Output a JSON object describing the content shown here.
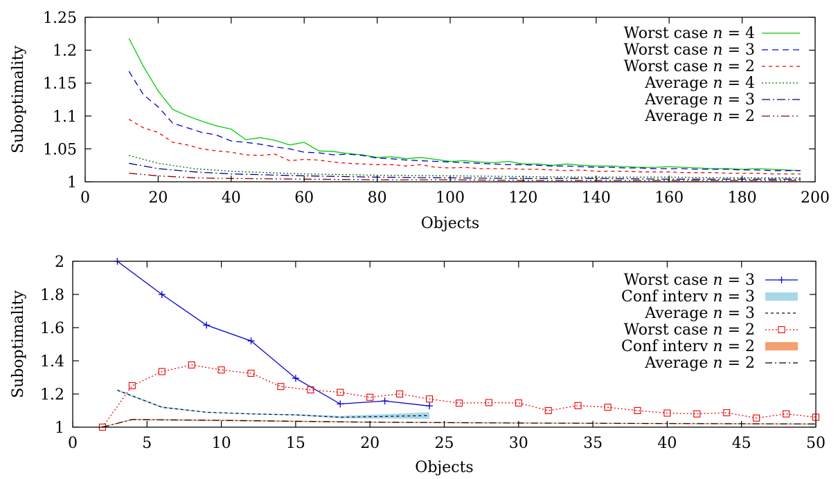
{
  "chart_data": [
    {
      "type": "line",
      "title": "",
      "xlabel": "Objects",
      "ylabel": "Suboptimality",
      "xlim": [
        0,
        200
      ],
      "ylim": [
        1,
        1.25
      ],
      "xticks": [
        0,
        20,
        40,
        60,
        80,
        100,
        120,
        140,
        160,
        180,
        200
      ],
      "yticks": [
        1,
        1.05,
        1.1,
        1.15,
        1.2,
        1.25
      ],
      "ytick_labels": [
        "1",
        "1.05",
        "1.1",
        "1.15",
        "1.2",
        "1.25"
      ],
      "legend_position": "top-right",
      "grid": false,
      "series": [
        {
          "name": "Worst case n = 4",
          "label_prefix": "Worst case ",
          "label_suffix": "4",
          "color": "#00cc00",
          "dash": "",
          "width": 1.3,
          "x": [
            12,
            16,
            20,
            24,
            28,
            32,
            36,
            40,
            44,
            48,
            52,
            56,
            60,
            64,
            68,
            72,
            76,
            80,
            84,
            88,
            92,
            96,
            100,
            104,
            108,
            112,
            116,
            120,
            124,
            128,
            132,
            136,
            140,
            144,
            148,
            152,
            156,
            160,
            164,
            168,
            172,
            176,
            180,
            184,
            188,
            192,
            196
          ],
          "y": [
            1.218,
            1.175,
            1.138,
            1.11,
            1.1,
            1.092,
            1.085,
            1.08,
            1.064,
            1.067,
            1.063,
            1.056,
            1.06,
            1.047,
            1.046,
            1.043,
            1.041,
            1.037,
            1.038,
            1.035,
            1.037,
            1.034,
            1.031,
            1.032,
            1.03,
            1.029,
            1.031,
            1.027,
            1.027,
            1.025,
            1.027,
            1.025,
            1.024,
            1.024,
            1.023,
            1.022,
            1.022,
            1.023,
            1.022,
            1.021,
            1.02,
            1.02,
            1.019,
            1.02,
            1.019,
            1.018,
            1.017
          ]
        },
        {
          "name": "Worst case n = 3",
          "label_prefix": "Worst case ",
          "label_suffix": "3",
          "color": "#0000cc",
          "dash": "9,6",
          "width": 1.3,
          "x": [
            12,
            16,
            20,
            24,
            28,
            32,
            36,
            40,
            44,
            48,
            52,
            56,
            60,
            64,
            68,
            72,
            76,
            80,
            84,
            88,
            92,
            96,
            100,
            104,
            108,
            112,
            116,
            120,
            124,
            128,
            132,
            136,
            140,
            144,
            148,
            152,
            156,
            160,
            164,
            168,
            172,
            176,
            180,
            184,
            188,
            192,
            196
          ],
          "y": [
            1.168,
            1.132,
            1.114,
            1.089,
            1.082,
            1.075,
            1.071,
            1.062,
            1.06,
            1.057,
            1.053,
            1.05,
            1.045,
            1.044,
            1.041,
            1.042,
            1.04,
            1.036,
            1.035,
            1.033,
            1.032,
            1.031,
            1.03,
            1.029,
            1.028,
            1.027,
            1.026,
            1.026,
            1.025,
            1.024,
            1.024,
            1.023,
            1.022,
            1.022,
            1.021,
            1.021,
            1.02,
            1.02,
            1.02,
            1.019,
            1.019,
            1.019,
            1.018,
            1.018,
            1.017,
            1.017,
            1.017
          ]
        },
        {
          "name": "Worst case n = 2",
          "label_prefix": "Worst case ",
          "label_suffix": "2",
          "color": "#ee0000",
          "dash": "5,5",
          "width": 1.3,
          "x": [
            12,
            16,
            20,
            24,
            28,
            32,
            36,
            40,
            44,
            48,
            52,
            56,
            60,
            64,
            68,
            72,
            76,
            80,
            84,
            88,
            92,
            96,
            100,
            104,
            108,
            112,
            116,
            120,
            124,
            128,
            132,
            136,
            140,
            144,
            148,
            152,
            156,
            160,
            164,
            168,
            172,
            176,
            180,
            184,
            188,
            192,
            196
          ],
          "y": [
            1.095,
            1.082,
            1.075,
            1.06,
            1.056,
            1.05,
            1.047,
            1.045,
            1.041,
            1.04,
            1.042,
            1.032,
            1.034,
            1.033,
            1.03,
            1.028,
            1.027,
            1.026,
            1.026,
            1.024,
            1.026,
            1.022,
            1.021,
            1.022,
            1.02,
            1.02,
            1.02,
            1.019,
            1.019,
            1.018,
            1.017,
            1.018,
            1.016,
            1.016,
            1.016,
            1.015,
            1.015,
            1.015,
            1.014,
            1.014,
            1.014,
            1.013,
            1.013,
            1.013,
            1.012,
            1.012,
            1.012
          ]
        },
        {
          "name": "Average n = 4",
          "label_prefix": "Average ",
          "label_suffix": "4",
          "color": "#006600",
          "dash": "2,3",
          "width": 1.3,
          "x": [
            12,
            20,
            30,
            40,
            60,
            80,
            100,
            120,
            140,
            160,
            180,
            196
          ],
          "y": [
            1.04,
            1.028,
            1.02,
            1.016,
            1.012,
            1.01,
            1.009,
            1.008,
            1.007,
            1.007,
            1.006,
            1.006
          ]
        },
        {
          "name": "Average n = 3",
          "label_prefix": "Average ",
          "label_suffix": "3",
          "color": "#000080",
          "dash": "12,4,2,4",
          "width": 1.3,
          "x": [
            12,
            20,
            30,
            40,
            60,
            80,
            100,
            120,
            140,
            160,
            180,
            196
          ],
          "y": [
            1.028,
            1.02,
            1.015,
            1.012,
            1.009,
            1.007,
            1.006,
            1.005,
            1.005,
            1.004,
            1.004,
            1.004
          ]
        },
        {
          "name": "Average n = 2",
          "label_prefix": "Average ",
          "label_suffix": "2",
          "color": "#8b0000",
          "dash": "12,4,2,4,2,4",
          "width": 1.3,
          "x": [
            12,
            20,
            30,
            40,
            60,
            80,
            100,
            120,
            140,
            160,
            180,
            196
          ],
          "y": [
            1.013,
            1.009,
            1.006,
            1.005,
            1.004,
            1.003,
            1.003,
            1.002,
            1.002,
            1.002,
            1.002,
            1.002
          ]
        }
      ]
    },
    {
      "type": "line",
      "title": "",
      "xlabel": "Objects",
      "ylabel": "Suboptimality",
      "xlim": [
        0,
        50
      ],
      "ylim": [
        1,
        2
      ],
      "xticks": [
        0,
        5,
        10,
        15,
        20,
        25,
        30,
        35,
        40,
        45,
        50
      ],
      "yticks": [
        1,
        1.2,
        1.4,
        1.6,
        1.8,
        2
      ],
      "ytick_labels": [
        "1",
        "1.2",
        "1.4",
        "1.6",
        "1.8",
        "2"
      ],
      "legend_position": "top-right",
      "grid": false,
      "series": [
        {
          "name": "Worst case n = 3",
          "label_prefix": "Worst case ",
          "label_suffix": "3",
          "kind": "line",
          "color": "#0000cc",
          "dash": "",
          "width": 1.3,
          "marker": "plus",
          "x": [
            3,
            6,
            9,
            12,
            15,
            18,
            21,
            24
          ],
          "y": [
            2.0,
            1.8,
            1.615,
            1.52,
            1.295,
            1.14,
            1.158,
            1.128
          ]
        },
        {
          "name": "Conf interv n = 3",
          "label_prefix": "Conf interv ",
          "label_suffix": "3",
          "kind": "band",
          "color": "#a8d8e8",
          "x": [
            3,
            6,
            9,
            12,
            15,
            18,
            21,
            24
          ],
          "lower": [
            1.218,
            1.115,
            1.087,
            1.077,
            1.07,
            1.053,
            1.052,
            1.05
          ],
          "upper": [
            1.228,
            1.125,
            1.093,
            1.083,
            1.078,
            1.068,
            1.078,
            1.09
          ]
        },
        {
          "name": "Average n = 3",
          "label_prefix": "Average ",
          "label_suffix": "3",
          "kind": "line",
          "color": "#000033",
          "dash": "4,4",
          "width": 1.2,
          "x": [
            3,
            6,
            9,
            12,
            15,
            18,
            21,
            24
          ],
          "y": [
            1.223,
            1.12,
            1.09,
            1.08,
            1.074,
            1.06,
            1.065,
            1.07
          ]
        },
        {
          "name": "Worst case n = 2",
          "label_prefix": "Worst case ",
          "label_suffix": "2",
          "kind": "line",
          "color": "#ee0000",
          "dash": "2,3",
          "width": 1.3,
          "marker": "square",
          "x": [
            2,
            4,
            6,
            8,
            10,
            12,
            14,
            16,
            18,
            20,
            22,
            24,
            26,
            28,
            30,
            32,
            34,
            36,
            38,
            40,
            42,
            44,
            46,
            48,
            50
          ],
          "y": [
            1.0,
            1.25,
            1.335,
            1.375,
            1.345,
            1.325,
            1.245,
            1.225,
            1.21,
            1.18,
            1.2,
            1.17,
            1.145,
            1.148,
            1.146,
            1.1,
            1.13,
            1.12,
            1.1,
            1.085,
            1.08,
            1.087,
            1.055,
            1.08,
            1.06
          ]
        },
        {
          "name": "Conf interv n = 2",
          "label_prefix": "Conf interv ",
          "label_suffix": "2",
          "kind": "band",
          "color": "#f4a070",
          "x": [
            2,
            4,
            10,
            20,
            30,
            40,
            50
          ],
          "lower": [
            0.999,
            1.042,
            1.037,
            1.027,
            1.022,
            1.019,
            1.016
          ],
          "upper": [
            1.003,
            1.05,
            1.045,
            1.033,
            1.028,
            1.025,
            1.022
          ]
        },
        {
          "name": "Average n = 2",
          "label_prefix": "Average ",
          "label_suffix": "2",
          "kind": "line",
          "color": "#000000",
          "dash": "10,4,2,4",
          "width": 1.2,
          "x": [
            2,
            4,
            10,
            20,
            30,
            40,
            50
          ],
          "y": [
            1.0,
            1.046,
            1.041,
            1.03,
            1.025,
            1.022,
            1.019
          ]
        }
      ]
    }
  ]
}
